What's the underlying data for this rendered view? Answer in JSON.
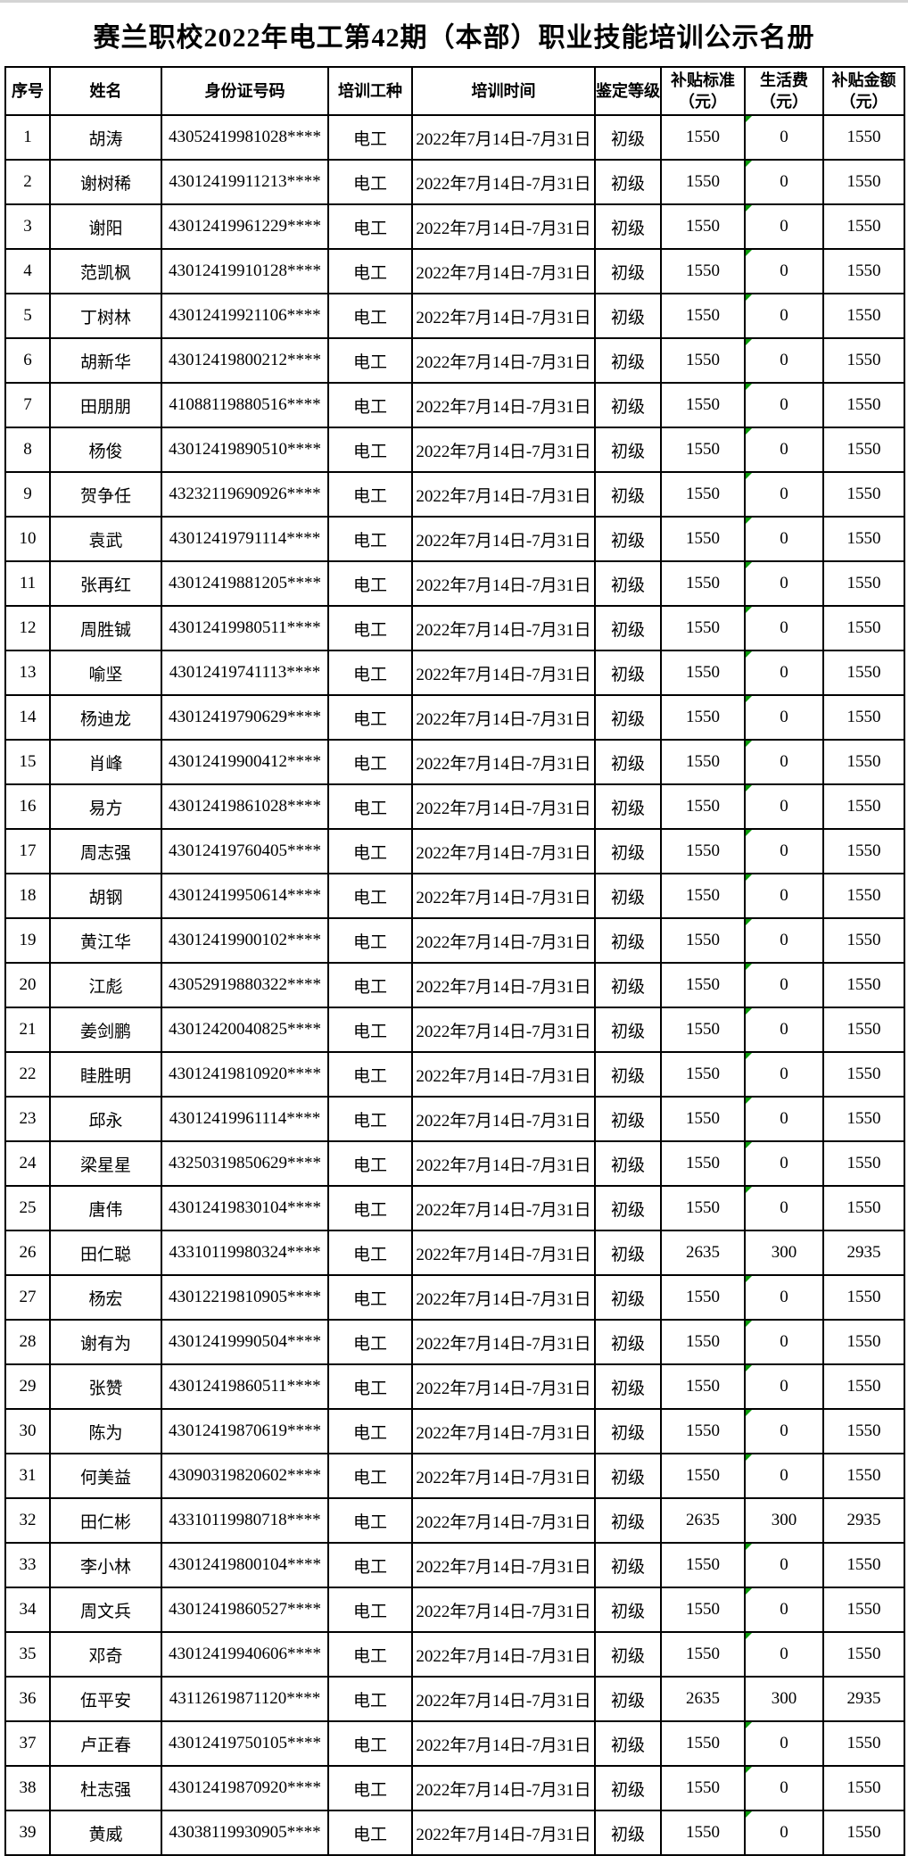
{
  "title": "赛兰职校2022年电工第42期（本部）职业技能培训公示名册",
  "colors": {
    "background": "#ffffff",
    "border": "#000000",
    "text": "#000000",
    "flag_green": "#0a9a0a"
  },
  "table": {
    "columns": [
      {
        "key": "no",
        "label": "序号"
      },
      {
        "key": "name",
        "label": "姓名"
      },
      {
        "key": "id",
        "label": "身份证号码"
      },
      {
        "key": "trade",
        "label": "培训工种"
      },
      {
        "key": "period",
        "label": "培训时间"
      },
      {
        "key": "level",
        "label": "鉴定等级"
      },
      {
        "key": "standard",
        "label": "补贴标准\n（元）"
      },
      {
        "key": "living",
        "label": "生活费\n（元）"
      },
      {
        "key": "amount",
        "label": "补贴金额\n（元）"
      }
    ],
    "rows": [
      {
        "no": "1",
        "name": "胡涛",
        "id": "43052419981028****",
        "trade": "电工",
        "period": "2022年7月14日-7月31日",
        "level": "初级",
        "standard": "1550",
        "living": "0",
        "amount": "1550",
        "living_marker": true
      },
      {
        "no": "2",
        "name": "谢树稀",
        "id": "43012419911213****",
        "trade": "电工",
        "period": "2022年7月14日-7月31日",
        "level": "初级",
        "standard": "1550",
        "living": "0",
        "amount": "1550",
        "living_marker": true
      },
      {
        "no": "3",
        "name": "谢阳",
        "id": "43012419961229****",
        "trade": "电工",
        "period": "2022年7月14日-7月31日",
        "level": "初级",
        "standard": "1550",
        "living": "0",
        "amount": "1550",
        "living_marker": true
      },
      {
        "no": "4",
        "name": "范凯枫",
        "id": "43012419910128****",
        "trade": "电工",
        "period": "2022年7月14日-7月31日",
        "level": "初级",
        "standard": "1550",
        "living": "0",
        "amount": "1550",
        "living_marker": true
      },
      {
        "no": "5",
        "name": "丁树林",
        "id": "43012419921106****",
        "trade": "电工",
        "period": "2022年7月14日-7月31日",
        "level": "初级",
        "standard": "1550",
        "living": "0",
        "amount": "1550",
        "living_marker": true
      },
      {
        "no": "6",
        "name": "胡新华",
        "id": "43012419800212****",
        "trade": "电工",
        "period": "2022年7月14日-7月31日",
        "level": "初级",
        "standard": "1550",
        "living": "0",
        "amount": "1550",
        "living_marker": true
      },
      {
        "no": "7",
        "name": "田朋朋",
        "id": "41088119880516****",
        "trade": "电工",
        "period": "2022年7月14日-7月31日",
        "level": "初级",
        "standard": "1550",
        "living": "0",
        "amount": "1550",
        "living_marker": true
      },
      {
        "no": "8",
        "name": "杨俊",
        "id": "43012419890510****",
        "trade": "电工",
        "period": "2022年7月14日-7月31日",
        "level": "初级",
        "standard": "1550",
        "living": "0",
        "amount": "1550",
        "living_marker": true
      },
      {
        "no": "9",
        "name": "贺争任",
        "id": "43232119690926****",
        "trade": "电工",
        "period": "2022年7月14日-7月31日",
        "level": "初级",
        "standard": "1550",
        "living": "0",
        "amount": "1550",
        "living_marker": true
      },
      {
        "no": "10",
        "name": "袁武",
        "id": "43012419791114****",
        "trade": "电工",
        "period": "2022年7月14日-7月31日",
        "level": "初级",
        "standard": "1550",
        "living": "0",
        "amount": "1550",
        "living_marker": true
      },
      {
        "no": "11",
        "name": "张再红",
        "id": "43012419881205****",
        "trade": "电工",
        "period": "2022年7月14日-7月31日",
        "level": "初级",
        "standard": "1550",
        "living": "0",
        "amount": "1550",
        "living_marker": true
      },
      {
        "no": "12",
        "name": "周胜铖",
        "id": "43012419980511****",
        "trade": "电工",
        "period": "2022年7月14日-7月31日",
        "level": "初级",
        "standard": "1550",
        "living": "0",
        "amount": "1550",
        "living_marker": true
      },
      {
        "no": "13",
        "name": "喻坚",
        "id": "43012419741113****",
        "trade": "电工",
        "period": "2022年7月14日-7月31日",
        "level": "初级",
        "standard": "1550",
        "living": "0",
        "amount": "1550",
        "living_marker": true
      },
      {
        "no": "14",
        "name": "杨迪龙",
        "id": "43012419790629****",
        "trade": "电工",
        "period": "2022年7月14日-7月31日",
        "level": "初级",
        "standard": "1550",
        "living": "0",
        "amount": "1550",
        "living_marker": true
      },
      {
        "no": "15",
        "name": "肖峰",
        "id": "43012419900412****",
        "trade": "电工",
        "period": "2022年7月14日-7月31日",
        "level": "初级",
        "standard": "1550",
        "living": "0",
        "amount": "1550",
        "living_marker": true
      },
      {
        "no": "16",
        "name": "易方",
        "id": "43012419861028****",
        "trade": "电工",
        "period": "2022年7月14日-7月31日",
        "level": "初级",
        "standard": "1550",
        "living": "0",
        "amount": "1550",
        "living_marker": true
      },
      {
        "no": "17",
        "name": "周志强",
        "id": "43012419760405****",
        "trade": "电工",
        "period": "2022年7月14日-7月31日",
        "level": "初级",
        "standard": "1550",
        "living": "0",
        "amount": "1550",
        "living_marker": true
      },
      {
        "no": "18",
        "name": "胡钢",
        "id": "43012419950614****",
        "trade": "电工",
        "period": "2022年7月14日-7月31日",
        "level": "初级",
        "standard": "1550",
        "living": "0",
        "amount": "1550",
        "living_marker": true
      },
      {
        "no": "19",
        "name": "黄江华",
        "id": "43012419900102****",
        "trade": "电工",
        "period": "2022年7月14日-7月31日",
        "level": "初级",
        "standard": "1550",
        "living": "0",
        "amount": "1550",
        "living_marker": true
      },
      {
        "no": "20",
        "name": "江彪",
        "id": "43052919880322****",
        "trade": "电工",
        "period": "2022年7月14日-7月31日",
        "level": "初级",
        "standard": "1550",
        "living": "0",
        "amount": "1550",
        "living_marker": true
      },
      {
        "no": "21",
        "name": "姜剑鹏",
        "id": "43012420040825****",
        "trade": "电工",
        "period": "2022年7月14日-7月31日",
        "level": "初级",
        "standard": "1550",
        "living": "0",
        "amount": "1550",
        "living_marker": true
      },
      {
        "no": "22",
        "name": "眭胜明",
        "id": "43012419810920****",
        "trade": "电工",
        "period": "2022年7月14日-7月31日",
        "level": "初级",
        "standard": "1550",
        "living": "0",
        "amount": "1550",
        "living_marker": true
      },
      {
        "no": "23",
        "name": "邱永",
        "id": "43012419961114****",
        "trade": "电工",
        "period": "2022年7月14日-7月31日",
        "level": "初级",
        "standard": "1550",
        "living": "0",
        "amount": "1550",
        "living_marker": true
      },
      {
        "no": "24",
        "name": "梁星星",
        "id": "43250319850629****",
        "trade": "电工",
        "period": "2022年7月14日-7月31日",
        "level": "初级",
        "standard": "1550",
        "living": "0",
        "amount": "1550",
        "living_marker": true
      },
      {
        "no": "25",
        "name": "唐伟",
        "id": "43012419830104****",
        "trade": "电工",
        "period": "2022年7月14日-7月31日",
        "level": "初级",
        "standard": "1550",
        "living": "0",
        "amount": "1550",
        "living_marker": true
      },
      {
        "no": "26",
        "name": "田仁聪",
        "id": "43310119980324****",
        "trade": "电工",
        "period": "2022年7月14日-7月31日",
        "level": "初级",
        "standard": "2635",
        "living": "300",
        "amount": "2935",
        "living_marker": false
      },
      {
        "no": "27",
        "name": "杨宏",
        "id": "43012219810905****",
        "trade": "电工",
        "period": "2022年7月14日-7月31日",
        "level": "初级",
        "standard": "1550",
        "living": "0",
        "amount": "1550",
        "living_marker": true
      },
      {
        "no": "28",
        "name": "谢有为",
        "id": "43012419990504****",
        "trade": "电工",
        "period": "2022年7月14日-7月31日",
        "level": "初级",
        "standard": "1550",
        "living": "0",
        "amount": "1550",
        "living_marker": true
      },
      {
        "no": "29",
        "name": "张赞",
        "id": "43012419860511****",
        "trade": "电工",
        "period": "2022年7月14日-7月31日",
        "level": "初级",
        "standard": "1550",
        "living": "0",
        "amount": "1550",
        "living_marker": true
      },
      {
        "no": "30",
        "name": "陈为",
        "id": "43012419870619****",
        "trade": "电工",
        "period": "2022年7月14日-7月31日",
        "level": "初级",
        "standard": "1550",
        "living": "0",
        "amount": "1550",
        "living_marker": true
      },
      {
        "no": "31",
        "name": "何美益",
        "id": "43090319820602****",
        "trade": "电工",
        "period": "2022年7月14日-7月31日",
        "level": "初级",
        "standard": "1550",
        "living": "0",
        "amount": "1550",
        "living_marker": true
      },
      {
        "no": "32",
        "name": "田仁彬",
        "id": "43310119980718****",
        "trade": "电工",
        "period": "2022年7月14日-7月31日",
        "level": "初级",
        "standard": "2635",
        "living": "300",
        "amount": "2935",
        "living_marker": false
      },
      {
        "no": "33",
        "name": "李小林",
        "id": "43012419800104****",
        "trade": "电工",
        "period": "2022年7月14日-7月31日",
        "level": "初级",
        "standard": "1550",
        "living": "0",
        "amount": "1550",
        "living_marker": true
      },
      {
        "no": "34",
        "name": "周文兵",
        "id": "43012419860527****",
        "trade": "电工",
        "period": "2022年7月14日-7月31日",
        "level": "初级",
        "standard": "1550",
        "living": "0",
        "amount": "1550",
        "living_marker": true
      },
      {
        "no": "35",
        "name": "邓奇",
        "id": "43012419940606****",
        "trade": "电工",
        "period": "2022年7月14日-7月31日",
        "level": "初级",
        "standard": "1550",
        "living": "0",
        "amount": "1550",
        "living_marker": true
      },
      {
        "no": "36",
        "name": "伍平安",
        "id": "43112619871120****",
        "trade": "电工",
        "period": "2022年7月14日-7月31日",
        "level": "初级",
        "standard": "2635",
        "living": "300",
        "amount": "2935",
        "living_marker": false
      },
      {
        "no": "37",
        "name": "卢正春",
        "id": "43012419750105****",
        "trade": "电工",
        "period": "2022年7月14日-7月31日",
        "level": "初级",
        "standard": "1550",
        "living": "0",
        "amount": "1550",
        "living_marker": true
      },
      {
        "no": "38",
        "name": "杜志强",
        "id": "43012419870920****",
        "trade": "电工",
        "period": "2022年7月14日-7月31日",
        "level": "初级",
        "standard": "1550",
        "living": "0",
        "amount": "1550",
        "living_marker": true
      },
      {
        "no": "39",
        "name": "黄威",
        "id": "43038119930905****",
        "trade": "电工",
        "period": "2022年7月14日-7月31日",
        "level": "初级",
        "standard": "1550",
        "living": "0",
        "amount": "1550",
        "living_marker": true
      }
    ]
  }
}
